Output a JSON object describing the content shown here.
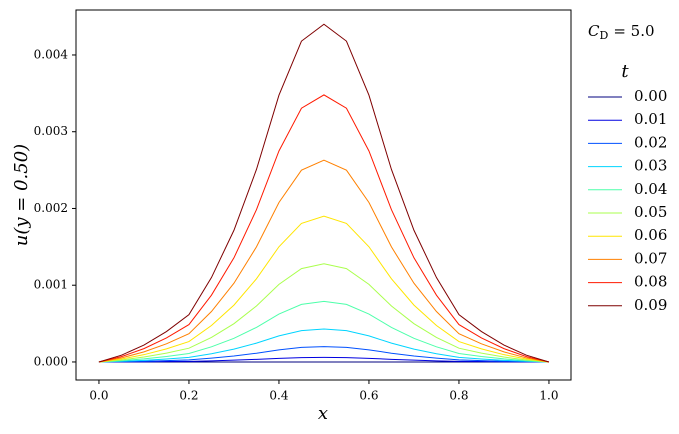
{
  "chart_data": {
    "type": "line",
    "ylabel": "u(y = 0.50)",
    "xlabel": "x",
    "annotation": {
      "symbol": "C",
      "subscript": "D",
      "text": "= 5.0"
    },
    "legend_title": "t",
    "x": [
      0,
      0.05,
      0.1,
      0.15,
      0.2,
      0.25,
      0.3,
      0.35,
      0.4,
      0.45,
      0.5,
      0.55,
      0.6,
      0.65,
      0.7,
      0.75,
      0.8,
      0.85,
      0.9,
      0.95,
      1.0
    ],
    "xlim": [
      -0.051,
      1.049
    ],
    "ylim": [
      -0.000235,
      0.004586
    ],
    "xticks": [
      {
        "value": 0,
        "label": "0.0"
      },
      {
        "value": 0.2,
        "label": "0.2"
      },
      {
        "value": 0.4,
        "label": "0.4"
      },
      {
        "value": 0.6,
        "label": "0.6"
      },
      {
        "value": 0.8,
        "label": "0.8"
      },
      {
        "value": 1.0,
        "label": "1.0"
      }
    ],
    "yticks": [
      {
        "value": 0,
        "label": "0.000"
      },
      {
        "value": 0.001,
        "label": "0.001"
      },
      {
        "value": 0.002,
        "label": "0.002"
      },
      {
        "value": 0.003,
        "label": "0.003"
      },
      {
        "value": 0.004,
        "label": "0.004"
      }
    ],
    "series": [
      {
        "name": "0.00",
        "color": "#00007f",
        "values": [
          0,
          0,
          0,
          0,
          0,
          0,
          0,
          0,
          0,
          0,
          0,
          0,
          0,
          0,
          0,
          0,
          0,
          0,
          0,
          0,
          0
        ]
      },
      {
        "name": "0.01",
        "color": "#0000e0",
        "values": [
          0,
          1.2e-06,
          3e-06,
          5.4e-06,
          8.4e-06,
          1.5e-05,
          2.34e-05,
          3.42e-05,
          4.74e-05,
          5.7e-05,
          6e-05,
          5.7e-05,
          4.74e-05,
          3.42e-05,
          2.34e-05,
          1.5e-05,
          8.4e-06,
          5.4e-06,
          3e-06,
          1.2e-06,
          0
        ]
      },
      {
        "name": "0.02",
        "color": "#0050ff",
        "values": [
          0,
          4e-06,
          1e-05,
          1.8e-05,
          2.8e-05,
          5e-05,
          7.8e-05,
          0.000114,
          0.000158,
          0.00019,
          0.0002,
          0.00019,
          0.000158,
          0.000114,
          7.8e-05,
          5e-05,
          2.8e-05,
          1.8e-05,
          1e-05,
          4e-06,
          0
        ]
      },
      {
        "name": "0.03",
        "color": "#00d4ff",
        "values": [
          0,
          8.6e-06,
          2.15e-05,
          3.87e-05,
          6.02e-05,
          0.0001075,
          0.0001677,
          0.0002451,
          0.0003397,
          0.0004085,
          0.00043,
          0.0004085,
          0.0003397,
          0.0002451,
          0.0001677,
          0.0001075,
          6.02e-05,
          3.87e-05,
          2.15e-05,
          8.6e-06,
          0
        ]
      },
      {
        "name": "0.04",
        "color": "#4dffaa",
        "values": [
          0,
          1.58e-05,
          3.95e-05,
          7.11e-05,
          0.0001106,
          0.0001975,
          0.0003081,
          0.0004503,
          0.0006241,
          0.0007505,
          0.00079,
          0.0007505,
          0.0006241,
          0.0004503,
          0.0003081,
          0.0001975,
          0.0001106,
          7.11e-05,
          3.95e-05,
          1.58e-05,
          0
        ]
      },
      {
        "name": "0.05",
        "color": "#aaff4d",
        "values": [
          0,
          2.56e-05,
          6.4e-05,
          0.0001152,
          0.0001792,
          0.00032,
          0.0004992,
          0.0007296,
          0.0010112,
          0.001216,
          0.00128,
          0.001216,
          0.0010112,
          0.0007296,
          0.0004992,
          0.00032,
          0.0001792,
          0.0001152,
          6.4e-05,
          2.56e-05,
          0
        ]
      },
      {
        "name": "0.06",
        "color": "#ffe500",
        "values": [
          0,
          3.8e-05,
          9.5e-05,
          0.000171,
          0.000266,
          0.000475,
          0.000741,
          0.001083,
          0.001501,
          0.001805,
          0.0019,
          0.001805,
          0.001501,
          0.001083,
          0.000741,
          0.000475,
          0.000266,
          0.000171,
          9.5e-05,
          3.8e-05,
          0
        ]
      },
      {
        "name": "0.07",
        "color": "#ff8000",
        "values": [
          0,
          5.26e-05,
          0.0001315,
          0.0002367,
          0.0003682,
          0.0006575,
          0.0010257,
          0.0014991,
          0.0020777,
          0.0024985,
          0.00263,
          0.0024985,
          0.0020777,
          0.0014991,
          0.0010257,
          0.0006575,
          0.0003682,
          0.0002367,
          0.0001315,
          5.26e-05,
          0
        ]
      },
      {
        "name": "0.08",
        "color": "#ff1a00",
        "values": [
          0,
          6.96e-05,
          0.000174,
          0.0003132,
          0.0004872,
          0.00087,
          0.0013572,
          0.0019836,
          0.0027492,
          0.003306,
          0.00348,
          0.003306,
          0.0027492,
          0.0019836,
          0.0013572,
          0.00087,
          0.0004872,
          0.0003132,
          0.000174,
          6.96e-05,
          0
        ]
      },
      {
        "name": "0.09",
        "color": "#7f0000",
        "values": [
          0,
          8.8e-05,
          0.00022,
          0.000396,
          0.000616,
          0.0011,
          0.001716,
          0.002508,
          0.003476,
          0.00418,
          0.0044,
          0.00418,
          0.003476,
          0.002508,
          0.001716,
          0.0011,
          0.000616,
          0.000396,
          0.00022,
          8.8e-05,
          0
        ]
      }
    ]
  }
}
